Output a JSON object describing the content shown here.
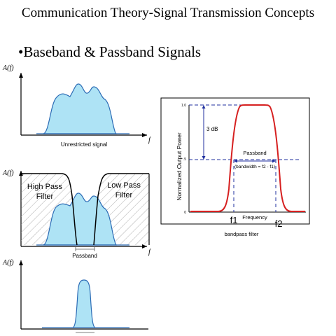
{
  "slide": {
    "title": "Communication Theory-Signal Transmission Concepts",
    "bullet": "•Baseband  & Passband Signals"
  },
  "left_diagrams": {
    "y_axis_label": "A(f)",
    "x_axis_label": "f",
    "panel1_caption": "Unrestricted signal",
    "high_pass_label": [
      "High Pass",
      "Filter"
    ],
    "low_pass_label": [
      "Low Pass",
      "Filter"
    ],
    "panel2_caption": "Passband"
  },
  "bandpass_chart": {
    "y_label": "Normalized Output Power",
    "x_label": "Frequency",
    "tick_top": "1.0",
    "tick_mid": ".5",
    "tick_zero": "0",
    "db_label": "3 dB",
    "passband_label": "Passband",
    "bandwidth_label": "(bandwidth = f2 - f1)",
    "f1": "f1",
    "f2": "f2",
    "caption": "bandpass filter"
  },
  "colors": {
    "signal_fill": "#aee3f5",
    "response_curve": "#d62020",
    "annotation_blue": "#1f2f9f"
  }
}
